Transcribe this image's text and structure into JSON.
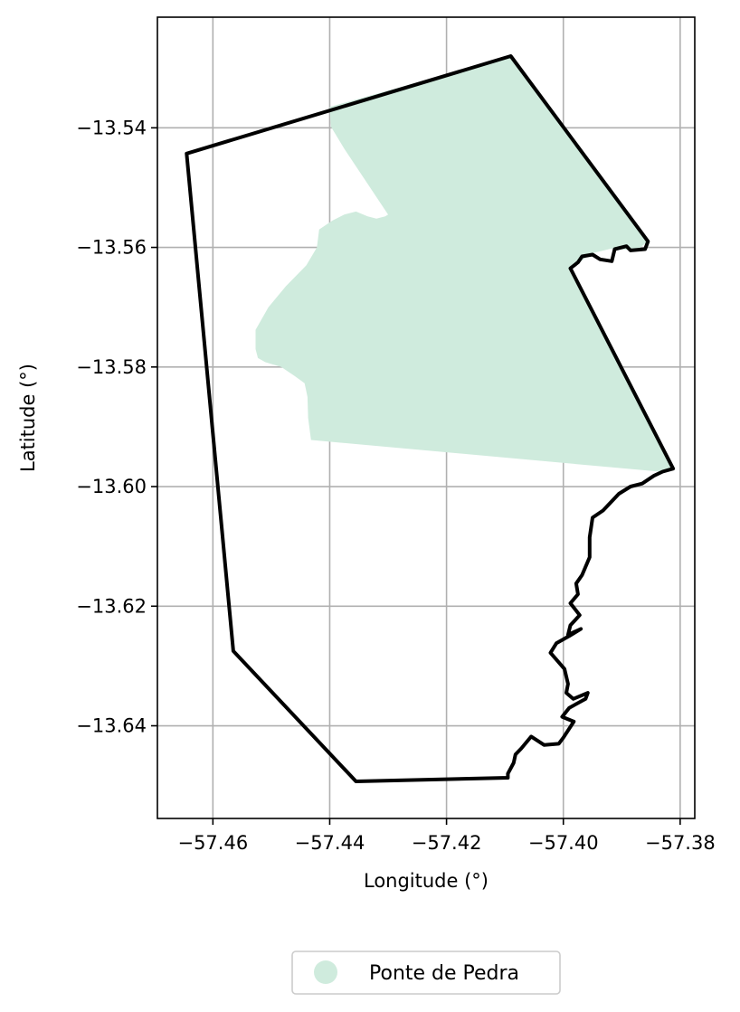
{
  "chart_data": {
    "type": "map",
    "xlabel": "Longitude (°)",
    "ylabel": "Latitude (°)",
    "xlim": [
      -57.4695,
      -57.3775
    ],
    "ylim": [
      -13.6555,
      -13.5215
    ],
    "x_ticks": [
      -57.46,
      -57.44,
      -57.42,
      -57.4,
      -57.38
    ],
    "x_tick_labels": [
      "−57.46",
      "−57.44",
      "−57.42",
      "−57.40",
      "−57.38"
    ],
    "y_ticks": [
      -13.54,
      -13.56,
      -13.58,
      -13.6,
      -13.62,
      -13.64
    ],
    "y_tick_labels": [
      "−13.54",
      "−13.56",
      "−13.58",
      "−13.60",
      "−13.62",
      "−13.64"
    ],
    "grid": true,
    "legend": {
      "placement": "bottom-center",
      "entries": [
        {
          "label": "Ponte de Pedra",
          "color": "#cfebdd",
          "marker": "circle"
        }
      ]
    },
    "layers": [
      {
        "kind": "polygon-fill",
        "name": "Ponte de Pedra",
        "color": "#cfebdd",
        "coords": [
          [
            -57.44,
            -13.5365
          ],
          [
            -57.409,
            -13.528
          ],
          [
            -57.3855,
            -13.559
          ],
          [
            -57.3875,
            -13.5605
          ],
          [
            -57.3918,
            -13.5602
          ],
          [
            -57.3952,
            -13.561
          ],
          [
            -57.399,
            -13.5638
          ],
          [
            -57.3812,
            -13.597
          ],
          [
            -57.3835,
            -13.5975
          ],
          [
            -57.4432,
            -13.5922
          ],
          [
            -57.4437,
            -13.5885
          ],
          [
            -57.4438,
            -13.585
          ],
          [
            -57.4443,
            -13.5827
          ],
          [
            -57.446,
            -13.5815
          ],
          [
            -57.4483,
            -13.58
          ],
          [
            -57.451,
            -13.5792
          ],
          [
            -57.4523,
            -13.5785
          ],
          [
            -57.4527,
            -13.577
          ],
          [
            -57.4527,
            -13.5738
          ],
          [
            -57.4505,
            -13.57
          ],
          [
            -57.4475,
            -13.5665
          ],
          [
            -57.444,
            -13.563
          ],
          [
            -57.4422,
            -13.56
          ],
          [
            -57.4418,
            -13.557
          ],
          [
            -57.4395,
            -13.5555
          ],
          [
            -57.4375,
            -13.5545
          ],
          [
            -57.4355,
            -13.554
          ],
          [
            -57.4335,
            -13.5548
          ],
          [
            -57.432,
            -13.5552
          ],
          [
            -57.4305,
            -13.5548
          ],
          [
            -57.43,
            -13.5545
          ],
          [
            -57.4375,
            -13.5435
          ],
          [
            -57.4398,
            -13.5398
          ],
          [
            -57.44,
            -13.537
          ]
        ]
      },
      {
        "kind": "boundary",
        "name": "boundary",
        "color": "#000000",
        "coords": [
          [
            -57.4645,
            -13.5443
          ],
          [
            -57.409,
            -13.528
          ],
          [
            -57.3855,
            -13.559
          ],
          [
            -57.386,
            -13.5603
          ],
          [
            -57.3885,
            -13.5605
          ],
          [
            -57.3892,
            -13.5598
          ],
          [
            -57.3912,
            -13.5603
          ],
          [
            -57.3917,
            -13.5623
          ],
          [
            -57.3937,
            -13.562
          ],
          [
            -57.395,
            -13.5612
          ],
          [
            -57.3968,
            -13.5615
          ],
          [
            -57.3975,
            -13.5625
          ],
          [
            -57.3988,
            -13.5635
          ],
          [
            -57.3812,
            -13.597
          ],
          [
            -57.383,
            -13.5975
          ],
          [
            -57.3845,
            -13.5982
          ],
          [
            -57.3865,
            -13.5995
          ],
          [
            -57.3885,
            -13.6
          ],
          [
            -57.3905,
            -13.6012
          ],
          [
            -57.3932,
            -13.604
          ],
          [
            -57.395,
            -13.6052
          ],
          [
            -57.3955,
            -13.6085
          ],
          [
            -57.3955,
            -13.6118
          ],
          [
            -57.3968,
            -13.6148
          ],
          [
            -57.3978,
            -13.6162
          ],
          [
            -57.3975,
            -13.618
          ],
          [
            -57.3988,
            -13.6195
          ],
          [
            -57.3972,
            -13.6215
          ],
          [
            -57.3988,
            -13.6232
          ],
          [
            -57.3992,
            -13.6248
          ],
          [
            -57.397,
            -13.6238
          ],
          [
            -57.399,
            -13.625
          ],
          [
            -57.4012,
            -13.6262
          ],
          [
            -57.4022,
            -13.6278
          ],
          [
            -57.3998,
            -13.6305
          ],
          [
            -57.3992,
            -13.633
          ],
          [
            -57.3995,
            -13.6345
          ],
          [
            -57.3983,
            -13.6355
          ],
          [
            -57.3958,
            -13.6345
          ],
          [
            -57.3962,
            -13.6355
          ],
          [
            -57.399,
            -13.637
          ],
          [
            -57.4002,
            -13.6385
          ],
          [
            -57.3982,
            -13.6393
          ],
          [
            -57.4,
            -13.642
          ],
          [
            -57.4008,
            -13.643
          ],
          [
            -57.4033,
            -13.6432
          ],
          [
            -57.4055,
            -13.6418
          ],
          [
            -57.4072,
            -13.6438
          ],
          [
            -57.4082,
            -13.6448
          ],
          [
            -57.4085,
            -13.6462
          ],
          [
            -57.4095,
            -13.648
          ],
          [
            -57.4095,
            -13.6487
          ],
          [
            -57.4355,
            -13.6493
          ],
          [
            -57.4565,
            -13.6275
          ],
          [
            -57.4645,
            -13.5443
          ]
        ]
      }
    ]
  }
}
